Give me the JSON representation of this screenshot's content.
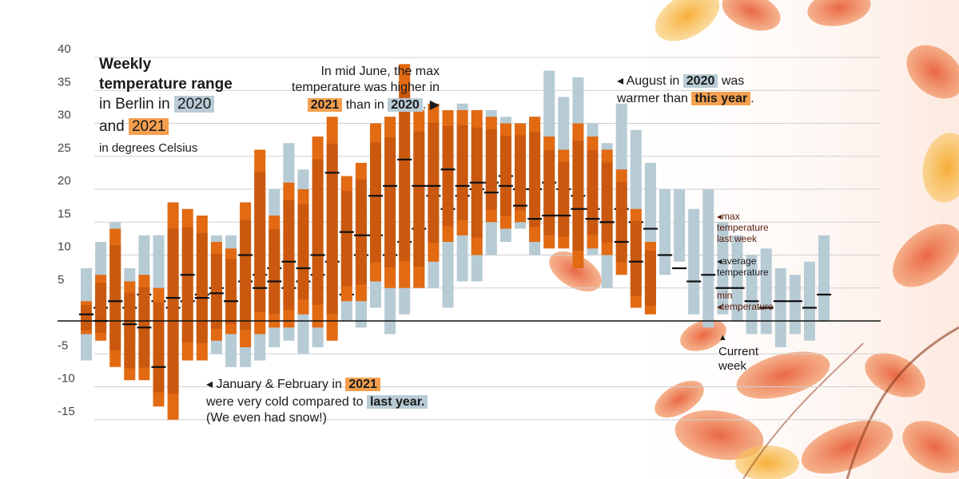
{
  "title": {
    "line1": "Weekly",
    "line2": "temperature range",
    "line3": "in Berlin in",
    "year_a": "2020",
    "line4": "and",
    "year_b": "2021",
    "subtitle": "in degrees Celsius"
  },
  "annotations": {
    "june": {
      "line1": "In mid June, the max",
      "line2": "temperature was higher in",
      "year_b": "2021",
      "mid": "than in",
      "year_a": "2020",
      "end": ". ▶"
    },
    "august": {
      "start": "◂ August in",
      "year_a": "2020",
      "was": "was",
      "line2": "warmer than",
      "this_year": "this year",
      "end": "."
    },
    "jan": {
      "line1": "◂ January & February in",
      "year_b": "2021",
      "line2": "were very cold compared to",
      "last_year": "last year.",
      "line3": "(We even had snow!)"
    },
    "legend_side": {
      "max": "◂max",
      "max2": "temperature",
      "max3": "last week",
      "avg": "◂average",
      "avg2": "temperature",
      "min": "min",
      "min2": "◂temperature"
    },
    "current_week": {
      "arrow": "▲",
      "line1": "Current",
      "line2": "week"
    }
  },
  "colors": {
    "c2020": "#b7cbd5",
    "c2021": "#e26a12",
    "c2021_dark": "#b74a0c",
    "grid": "#d0d0d0",
    "zero": "#111111",
    "avg_mark": "#111111"
  },
  "chart_data": {
    "type": "bar",
    "subtype": "floating range bars (weekly min–max) with average markers",
    "ylim": [
      -16,
      40
    ],
    "y_ticks": [
      40,
      35,
      30,
      25,
      20,
      15,
      10,
      5,
      "",
      -5,
      -10,
      -15
    ],
    "grid": true,
    "weeks": 52,
    "current_week": 38,
    "series": [
      {
        "name": "2020",
        "min": [
          -6,
          -2,
          -3,
          -3,
          -2,
          1,
          0,
          -1,
          -2,
          -5,
          -7,
          -7,
          -6,
          -4,
          -3,
          -5,
          -4,
          -2,
          0,
          -1,
          2,
          -2,
          1,
          5,
          5,
          2,
          6,
          6,
          10,
          12,
          14,
          10,
          12,
          12,
          8,
          10,
          5,
          7,
          7,
          3,
          7,
          9,
          1,
          -1,
          1,
          0,
          -2,
          -2,
          -4,
          -2,
          -3,
          0
        ],
        "max": [
          8,
          12,
          15,
          8,
          13,
          13,
          8,
          4,
          6,
          13,
          13,
          15,
          19,
          20,
          27,
          23,
          18,
          25,
          15,
          17,
          24,
          31,
          23,
          25,
          30,
          30,
          33,
          32,
          32,
          31,
          30,
          31,
          38,
          34,
          37,
          30,
          27,
          33,
          29,
          24,
          20,
          20,
          17,
          20,
          15,
          13,
          10,
          11,
          8,
          7,
          9,
          13
        ],
        "avg": [
          1,
          2,
          3,
          2,
          4,
          3,
          2,
          3,
          4,
          5,
          3,
          6,
          7,
          8,
          5,
          6,
          7,
          9,
          4,
          10,
          13,
          10,
          12,
          14,
          19,
          17,
          19,
          20,
          21,
          22,
          20,
          20,
          21,
          20,
          19,
          17,
          15,
          17,
          15,
          14,
          10,
          8,
          6,
          7,
          5,
          5,
          3,
          2,
          3,
          3,
          2,
          4
        ]
      },
      {
        "name": "2021",
        "min": [
          -2,
          -3,
          -7,
          -9,
          -9,
          -13,
          -15,
          -6,
          -6,
          -3,
          -2,
          -4,
          -2,
          -1,
          -1,
          1,
          -1,
          -3,
          3,
          3,
          6,
          5,
          5,
          5,
          9,
          12,
          13,
          10,
          15,
          14,
          15,
          12,
          11,
          11,
          8,
          11,
          10,
          7,
          2,
          1
        ],
        "max": [
          3,
          7,
          14,
          6,
          7,
          5,
          18,
          17,
          16,
          12,
          11,
          18,
          26,
          16,
          21,
          20,
          28,
          31,
          22,
          24,
          30,
          31,
          39,
          32,
          33,
          32,
          32,
          32,
          31,
          30,
          30,
          31,
          28,
          26,
          30,
          28,
          26,
          23,
          17,
          12
        ],
        "avg": [
          1,
          0,
          3,
          -0.5,
          -1,
          -7,
          3.5,
          7,
          3.5,
          4.2,
          3,
          10,
          5,
          6,
          9,
          8,
          10,
          22.5,
          13.5,
          13,
          19,
          20.5,
          24.5,
          20.5,
          20.5,
          23,
          20.5,
          21,
          19.5,
          20.5,
          17.5,
          15.5,
          16,
          16,
          17,
          15.5,
          15,
          12,
          9,
          null
        ]
      }
    ]
  }
}
